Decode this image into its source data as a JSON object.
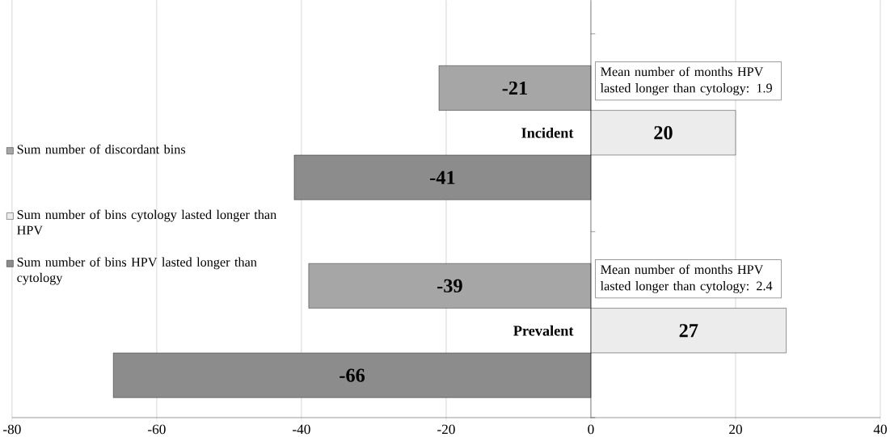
{
  "chart_data": {
    "type": "bar",
    "orientation": "horizontal",
    "categories": [
      "Incident",
      "Prevalent"
    ],
    "series": [
      {
        "name": "Sum number of discordant bins",
        "color": "#a6a6a6",
        "values": [
          -21,
          -39
        ]
      },
      {
        "name": "Sum number of bins cytology lasted longer than HPV",
        "color": "#ececec",
        "values": [
          20,
          27
        ]
      },
      {
        "name": "Sum number of bins HPV lasted longer than cytology",
        "color": "#8c8c8c",
        "values": [
          -41,
          -66
        ]
      }
    ],
    "xlim": [
      -80,
      40
    ],
    "xticks": [
      -80,
      -60,
      -40,
      -20,
      0,
      20,
      40
    ],
    "grid": "x",
    "legend": "left",
    "data_labels": true,
    "annotations": [
      {
        "text": "Mean number of months HPV lasted longer than cytology: 1.9",
        "x": 0,
        "y": "Incident"
      },
      {
        "text": "Mean number of months HPV lasted longer than cytology: 2.4",
        "x": 0,
        "y": "Prevalent"
      }
    ]
  }
}
